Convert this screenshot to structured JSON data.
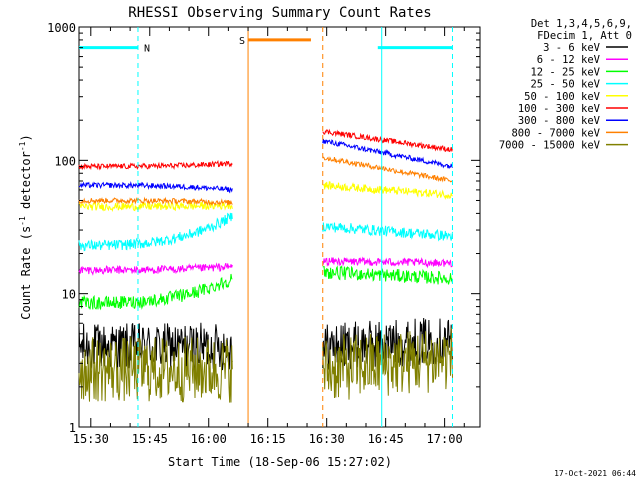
{
  "chart_data": {
    "type": "line",
    "title": "RHESSI Observing Summary Count Rates",
    "xlabel": "Start Time (18-Sep-06 15:27:02)",
    "ylabel": "Count Rate (s",
    "ylabel_sup": "-1",
    "ylabel_tail": " detector",
    "ylabel_close": ")",
    "y_scale": "log",
    "ylim": [
      1,
      1000
    ],
    "xlim": [
      "15:27",
      "17:09"
    ],
    "x_ticks": [
      "15:30",
      "15:45",
      "16:00",
      "16:15",
      "16:30",
      "16:45",
      "17:00"
    ],
    "y_ticks": [
      "1",
      "10",
      "100",
      "1000"
    ],
    "legend_header": [
      "Det 1,3,4,5,6,9,",
      "FDecim 1, Att 0"
    ],
    "footer": "17-Oct-2021 06:44",
    "flags": [
      {
        "label": "N",
        "color": "#00ffff",
        "ranges": [
          [
            "15:27",
            "15:42"
          ],
          [
            "16:43",
            "17:02"
          ]
        ],
        "level": 700
      },
      {
        "label": "S",
        "color": "#ff8000",
        "ranges": [
          [
            "16:10",
            "16:26"
          ]
        ],
        "level": 800
      }
    ],
    "vertical_lines": [
      {
        "time": "15:42",
        "color": "#00ffff",
        "style": "dashed"
      },
      {
        "time": "16:10",
        "color": "#ff8000",
        "style": "solid"
      },
      {
        "time": "16:29",
        "color": "#ff8000",
        "style": "dashed"
      },
      {
        "time": "16:44",
        "color": "#00ffff",
        "style": "solid"
      },
      {
        "time": "17:02",
        "color": "#00ffff",
        "style": "dashed"
      }
    ],
    "segments": [
      [
        "15:27",
        "16:06"
      ],
      [
        "16:29",
        "17:02"
      ]
    ],
    "series": [
      {
        "name": "3 - 6 keV",
        "color": "#000000",
        "v1": [
          4,
          4
        ],
        "v2": [
          4,
          4.5
        ],
        "noise": 0.18
      },
      {
        "name": "6 - 12 keV",
        "color": "#ff00ff",
        "v1": [
          15,
          16
        ],
        "v2": [
          17.5,
          17
        ],
        "noise": 0.03
      },
      {
        "name": "12 - 25 keV",
        "color": "#00ff00",
        "v1": [
          8.5,
          13
        ],
        "v2": [
          14.5,
          13
        ],
        "noise": 0.05
      },
      {
        "name": "25 - 50 keV",
        "color": "#00ffff",
        "v1": [
          23,
          38
        ],
        "v2": [
          32,
          27
        ],
        "noise": 0.04
      },
      {
        "name": "50 - 100 keV",
        "color": "#ffff00",
        "v1": [
          45,
          46
        ],
        "v2": [
          65,
          55
        ],
        "noise": 0.03
      },
      {
        "name": "100 - 300 keV",
        "color": "#ff0000",
        "v1": [
          90,
          95
        ],
        "v2": [
          165,
          120
        ],
        "noise": 0.02
      },
      {
        "name": "300 - 800 keV",
        "color": "#0000ff",
        "v1": [
          65,
          60
        ],
        "v2": [
          140,
          90
        ],
        "noise": 0.02
      },
      {
        "name": "800 - 7000 keV",
        "color": "#ff8000",
        "v1": [
          50,
          48
        ],
        "v2": [
          105,
          70
        ],
        "noise": 0.02
      },
      {
        "name": "7000 - 15000 keV",
        "color": "#808000",
        "v1": [
          2.7,
          2.7
        ],
        "v2": [
          2.7,
          3.3
        ],
        "noise": 0.25
      }
    ]
  }
}
